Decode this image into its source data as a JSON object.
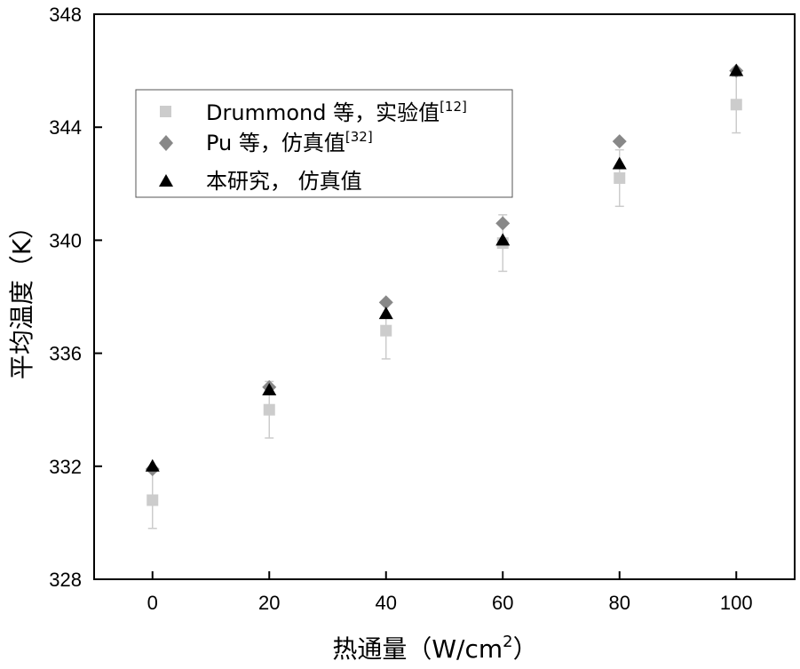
{
  "chart_data": {
    "type": "scatter",
    "xlabel": "热通量（W/cm",
    "xlabel_sup": "2",
    "xlabel_end": "）",
    "ylabel": "平均温度（K）",
    "xlim": [
      -10,
      110
    ],
    "ylim": [
      328,
      348
    ],
    "xticks": [
      "0",
      "20",
      "40",
      "60",
      "80",
      "100"
    ],
    "yticks": [
      "328",
      "332",
      "336",
      "340",
      "344",
      "348"
    ],
    "legend_position": "upper-left",
    "x": [
      0,
      20,
      40,
      60,
      80,
      100
    ],
    "series": [
      {
        "name": "Drummond 等，实验值",
        "name_sup": "[12]",
        "marker": "square",
        "color": "#cccccc",
        "values": [
          330.8,
          334.0,
          336.8,
          339.9,
          342.2,
          344.8
        ],
        "error": [
          1.0,
          1.0,
          1.0,
          1.0,
          1.0,
          1.0
        ]
      },
      {
        "name": "Pu 等，仿真值",
        "name_sup": "[32]",
        "marker": "diamond",
        "color": "#888888",
        "values": [
          331.9,
          334.8,
          337.8,
          340.6,
          343.5,
          346.0
        ]
      },
      {
        "name": "本研究， 仿真值",
        "name_sup": "",
        "marker": "triangle",
        "color": "#000000",
        "values": [
          332.0,
          334.7,
          337.4,
          340.0,
          342.7,
          346.0
        ]
      }
    ]
  }
}
